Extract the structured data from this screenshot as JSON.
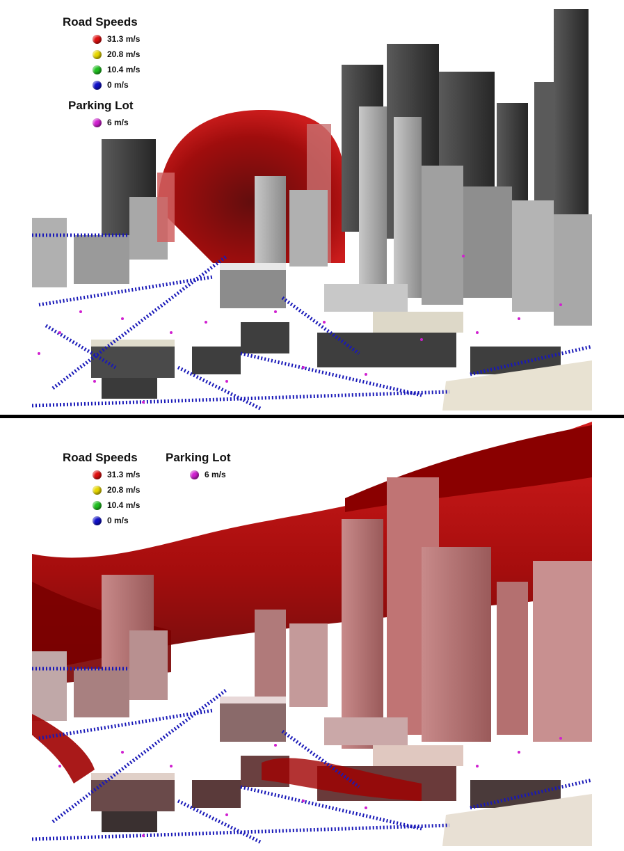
{
  "colors": {
    "fast": "#e01010",
    "medium": "#e8d800",
    "slow": "#20c020",
    "stopped": "#1010c8",
    "parking": "#d020d0",
    "plume": "#b00000",
    "building_gray": "#9a9a9a",
    "building_dark": "#3a3a3a"
  },
  "panels": [
    {
      "legend": {
        "road_title": "Road Speeds",
        "road_entries": [
          {
            "label": "31.3 m/s",
            "color": "#e01010",
            "icon": "red-sphere-icon"
          },
          {
            "label": "20.8 m/s",
            "color": "#e8d800",
            "icon": "yellow-sphere-icon"
          },
          {
            "label": "10.4 m/s",
            "color": "#20c020",
            "icon": "green-sphere-icon"
          },
          {
            "label": "0 m/s",
            "color": "#1010c8",
            "icon": "blue-sphere-icon"
          }
        ],
        "parking_title": "Parking Lot",
        "parking_entries": [
          {
            "label": "6 m/s",
            "color": "#d020d0",
            "icon": "magenta-sphere-icon"
          }
        ]
      }
    },
    {
      "legend": {
        "road_title": "Road Speeds",
        "road_entries": [
          {
            "label": "31.3 m/s",
            "color": "#e01010",
            "icon": "red-sphere-icon"
          },
          {
            "label": "20.8 m/s",
            "color": "#e8d800",
            "icon": "yellow-sphere-icon"
          },
          {
            "label": "10.4 m/s",
            "color": "#20c020",
            "icon": "green-sphere-icon"
          },
          {
            "label": "0 m/s",
            "color": "#1010c8",
            "icon": "blue-sphere-icon"
          }
        ],
        "parking_title": "Parking Lot",
        "parking_entries": [
          {
            "label": "6 m/s",
            "color": "#d020d0",
            "icon": "magenta-sphere-icon"
          }
        ]
      }
    }
  ]
}
